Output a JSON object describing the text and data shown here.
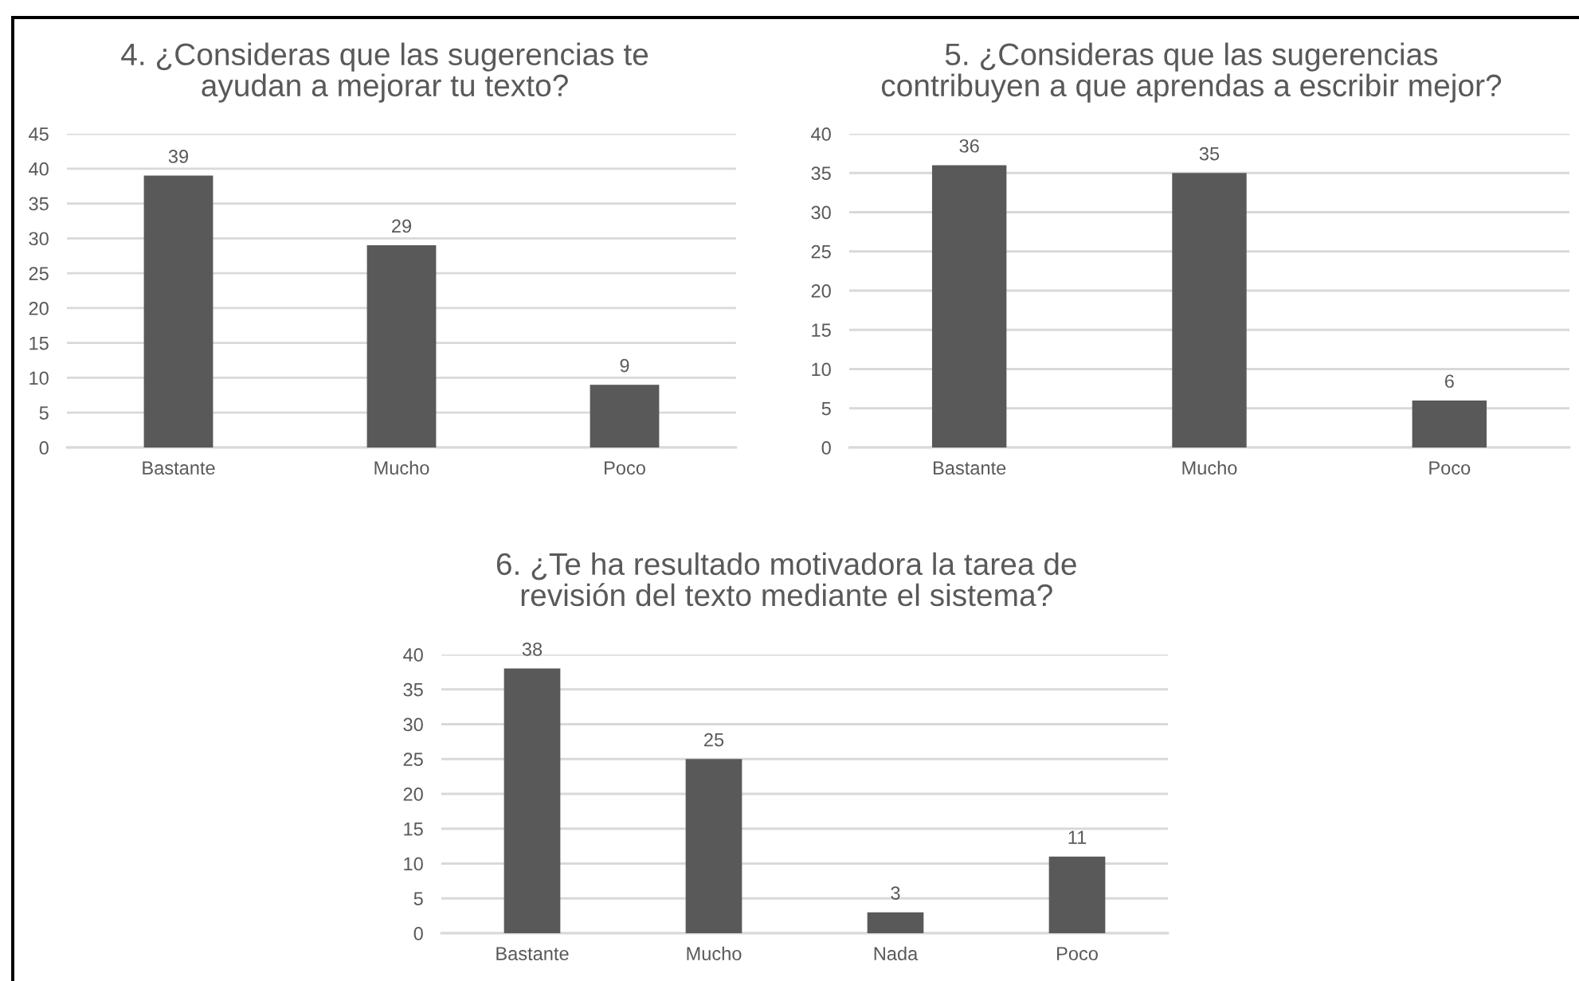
{
  "chart_data": [
    {
      "type": "bar",
      "title": "4. ¿Consideras que las sugerencias te\nayudan a mejorar tu texto?",
      "categories": [
        "Bastante",
        "Mucho",
        "Poco"
      ],
      "values": [
        39,
        29,
        9
      ],
      "color": "#595959",
      "ylim": [
        0,
        45
      ],
      "yticks": [
        0,
        5,
        10,
        15,
        20,
        25,
        30,
        35,
        40,
        45
      ],
      "grid": "y",
      "data_labels": true
    },
    {
      "type": "bar",
      "title": "5. ¿Consideras que las sugerencias\ncontribuyen a que aprendas a escribir mejor?",
      "categories": [
        "Bastante",
        "Mucho",
        "Poco"
      ],
      "values": [
        36,
        35,
        6
      ],
      "color": "#595959",
      "ylim": [
        0,
        40
      ],
      "yticks": [
        0,
        5,
        10,
        15,
        20,
        25,
        30,
        35,
        40
      ],
      "grid": "y",
      "data_labels": true
    },
    {
      "type": "bar",
      "title": "6. ¿Te ha resultado motivadora la tarea de\nrevisión del texto mediante el sistema?",
      "categories": [
        "Bastante",
        "Mucho",
        "Nada",
        "Poco"
      ],
      "values": [
        38,
        25,
        3,
        11
      ],
      "color": "#595959",
      "ylim": [
        0,
        40
      ],
      "yticks": [
        0,
        5,
        10,
        15,
        20,
        25,
        30,
        35,
        40
      ],
      "grid": "y",
      "data_labels": true
    }
  ]
}
